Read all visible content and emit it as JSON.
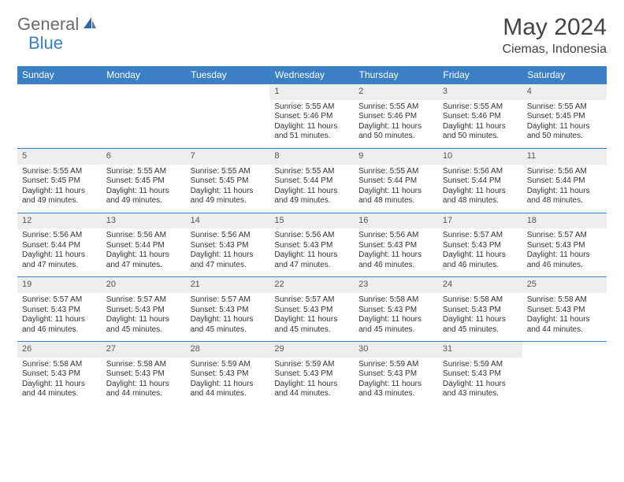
{
  "logo": {
    "text1": "General",
    "text2": "Blue"
  },
  "title": "May 2024",
  "location": "Ciemas, Indonesia",
  "colors": {
    "header_bg": "#3b7fc4",
    "header_text": "#ffffff",
    "daynum_bg": "#eeeeee",
    "border": "#3b7fc4",
    "page_bg": "#ffffff",
    "body_text": "#333333"
  },
  "weekdays": [
    "Sunday",
    "Monday",
    "Tuesday",
    "Wednesday",
    "Thursday",
    "Friday",
    "Saturday"
  ],
  "weeks": [
    [
      null,
      null,
      null,
      {
        "n": "1",
        "sr": "Sunrise: 5:55 AM",
        "ss": "Sunset: 5:46 PM",
        "dl": "Daylight: 11 hours and 51 minutes."
      },
      {
        "n": "2",
        "sr": "Sunrise: 5:55 AM",
        "ss": "Sunset: 5:46 PM",
        "dl": "Daylight: 11 hours and 50 minutes."
      },
      {
        "n": "3",
        "sr": "Sunrise: 5:55 AM",
        "ss": "Sunset: 5:46 PM",
        "dl": "Daylight: 11 hours and 50 minutes."
      },
      {
        "n": "4",
        "sr": "Sunrise: 5:55 AM",
        "ss": "Sunset: 5:45 PM",
        "dl": "Daylight: 11 hours and 50 minutes."
      }
    ],
    [
      {
        "n": "5",
        "sr": "Sunrise: 5:55 AM",
        "ss": "Sunset: 5:45 PM",
        "dl": "Daylight: 11 hours and 49 minutes."
      },
      {
        "n": "6",
        "sr": "Sunrise: 5:55 AM",
        "ss": "Sunset: 5:45 PM",
        "dl": "Daylight: 11 hours and 49 minutes."
      },
      {
        "n": "7",
        "sr": "Sunrise: 5:55 AM",
        "ss": "Sunset: 5:45 PM",
        "dl": "Daylight: 11 hours and 49 minutes."
      },
      {
        "n": "8",
        "sr": "Sunrise: 5:55 AM",
        "ss": "Sunset: 5:44 PM",
        "dl": "Daylight: 11 hours and 49 minutes."
      },
      {
        "n": "9",
        "sr": "Sunrise: 5:55 AM",
        "ss": "Sunset: 5:44 PM",
        "dl": "Daylight: 11 hours and 48 minutes."
      },
      {
        "n": "10",
        "sr": "Sunrise: 5:56 AM",
        "ss": "Sunset: 5:44 PM",
        "dl": "Daylight: 11 hours and 48 minutes."
      },
      {
        "n": "11",
        "sr": "Sunrise: 5:56 AM",
        "ss": "Sunset: 5:44 PM",
        "dl": "Daylight: 11 hours and 48 minutes."
      }
    ],
    [
      {
        "n": "12",
        "sr": "Sunrise: 5:56 AM",
        "ss": "Sunset: 5:44 PM",
        "dl": "Daylight: 11 hours and 47 minutes."
      },
      {
        "n": "13",
        "sr": "Sunrise: 5:56 AM",
        "ss": "Sunset: 5:44 PM",
        "dl": "Daylight: 11 hours and 47 minutes."
      },
      {
        "n": "14",
        "sr": "Sunrise: 5:56 AM",
        "ss": "Sunset: 5:43 PM",
        "dl": "Daylight: 11 hours and 47 minutes."
      },
      {
        "n": "15",
        "sr": "Sunrise: 5:56 AM",
        "ss": "Sunset: 5:43 PM",
        "dl": "Daylight: 11 hours and 47 minutes."
      },
      {
        "n": "16",
        "sr": "Sunrise: 5:56 AM",
        "ss": "Sunset: 5:43 PM",
        "dl": "Daylight: 11 hours and 46 minutes."
      },
      {
        "n": "17",
        "sr": "Sunrise: 5:57 AM",
        "ss": "Sunset: 5:43 PM",
        "dl": "Daylight: 11 hours and 46 minutes."
      },
      {
        "n": "18",
        "sr": "Sunrise: 5:57 AM",
        "ss": "Sunset: 5:43 PM",
        "dl": "Daylight: 11 hours and 46 minutes."
      }
    ],
    [
      {
        "n": "19",
        "sr": "Sunrise: 5:57 AM",
        "ss": "Sunset: 5:43 PM",
        "dl": "Daylight: 11 hours and 46 minutes."
      },
      {
        "n": "20",
        "sr": "Sunrise: 5:57 AM",
        "ss": "Sunset: 5:43 PM",
        "dl": "Daylight: 11 hours and 45 minutes."
      },
      {
        "n": "21",
        "sr": "Sunrise: 5:57 AM",
        "ss": "Sunset: 5:43 PM",
        "dl": "Daylight: 11 hours and 45 minutes."
      },
      {
        "n": "22",
        "sr": "Sunrise: 5:57 AM",
        "ss": "Sunset: 5:43 PM",
        "dl": "Daylight: 11 hours and 45 minutes."
      },
      {
        "n": "23",
        "sr": "Sunrise: 5:58 AM",
        "ss": "Sunset: 5:43 PM",
        "dl": "Daylight: 11 hours and 45 minutes."
      },
      {
        "n": "24",
        "sr": "Sunrise: 5:58 AM",
        "ss": "Sunset: 5:43 PM",
        "dl": "Daylight: 11 hours and 45 minutes."
      },
      {
        "n": "25",
        "sr": "Sunrise: 5:58 AM",
        "ss": "Sunset: 5:43 PM",
        "dl": "Daylight: 11 hours and 44 minutes."
      }
    ],
    [
      {
        "n": "26",
        "sr": "Sunrise: 5:58 AM",
        "ss": "Sunset: 5:43 PM",
        "dl": "Daylight: 11 hours and 44 minutes."
      },
      {
        "n": "27",
        "sr": "Sunrise: 5:58 AM",
        "ss": "Sunset: 5:43 PM",
        "dl": "Daylight: 11 hours and 44 minutes."
      },
      {
        "n": "28",
        "sr": "Sunrise: 5:59 AM",
        "ss": "Sunset: 5:43 PM",
        "dl": "Daylight: 11 hours and 44 minutes."
      },
      {
        "n": "29",
        "sr": "Sunrise: 5:59 AM",
        "ss": "Sunset: 5:43 PM",
        "dl": "Daylight: 11 hours and 44 minutes."
      },
      {
        "n": "30",
        "sr": "Sunrise: 5:59 AM",
        "ss": "Sunset: 5:43 PM",
        "dl": "Daylight: 11 hours and 43 minutes."
      },
      {
        "n": "31",
        "sr": "Sunrise: 5:59 AM",
        "ss": "Sunset: 5:43 PM",
        "dl": "Daylight: 11 hours and 43 minutes."
      },
      null
    ]
  ]
}
